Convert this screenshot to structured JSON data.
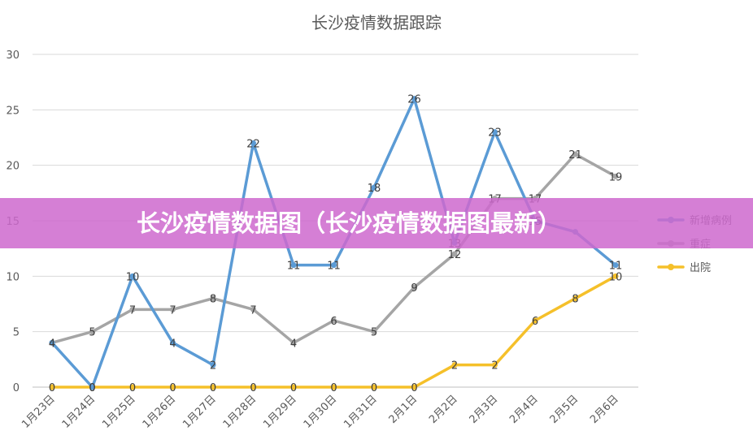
{
  "banner": {
    "text": "长沙疫情数据图（长沙疫情数据图最新）"
  },
  "chart_data": {
    "type": "line",
    "title": "长沙疫情数据跟踪",
    "categories": [
      "1月23日",
      "1月24日",
      "1月25日",
      "1月26日",
      "1月27日",
      "1月28日",
      "1月29日",
      "1月30日",
      "1月31日",
      "2月1日",
      "2月2日",
      "2月3日",
      "2月4日",
      "2月5日",
      "2月6日"
    ],
    "series": [
      {
        "name": "新增病例",
        "color": "#5b9bd5",
        "values": [
          4,
          0,
          10,
          4,
          2,
          22,
          11,
          11,
          18,
          26,
          13,
          23,
          15,
          14,
          11
        ],
        "point_labels": [
          "4",
          "0",
          "10",
          "4",
          "2",
          "22",
          "11",
          "11",
          "18",
          "26",
          "13",
          "23",
          "15",
          "",
          "11"
        ]
      },
      {
        "name": "重症",
        "color": "#a5a5a5",
        "values": [
          4,
          5,
          7,
          7,
          8,
          7,
          4,
          6,
          5,
          9,
          12,
          17,
          17,
          21,
          19
        ],
        "point_labels": [
          "4",
          "5",
          "7",
          "7",
          "8",
          "7",
          "4",
          "6",
          "5",
          "9",
          "12",
          "17",
          "17",
          "21",
          "19"
        ]
      },
      {
        "name": "出院",
        "color": "#f5c02a",
        "values": [
          0,
          0,
          0,
          0,
          0,
          0,
          0,
          0,
          0,
          0,
          2,
          2,
          6,
          8,
          10
        ],
        "point_labels": [
          "0",
          "0",
          "0",
          "0",
          "0",
          "0",
          "0",
          "0",
          "0",
          "0",
          "2",
          "2",
          "6",
          "8",
          "10"
        ]
      }
    ],
    "y_ticks": [
      "0",
      "5",
      "10",
      "15",
      "20",
      "25",
      "30"
    ],
    "ylim": [
      0,
      30
    ],
    "grid": true,
    "legend": "right"
  }
}
